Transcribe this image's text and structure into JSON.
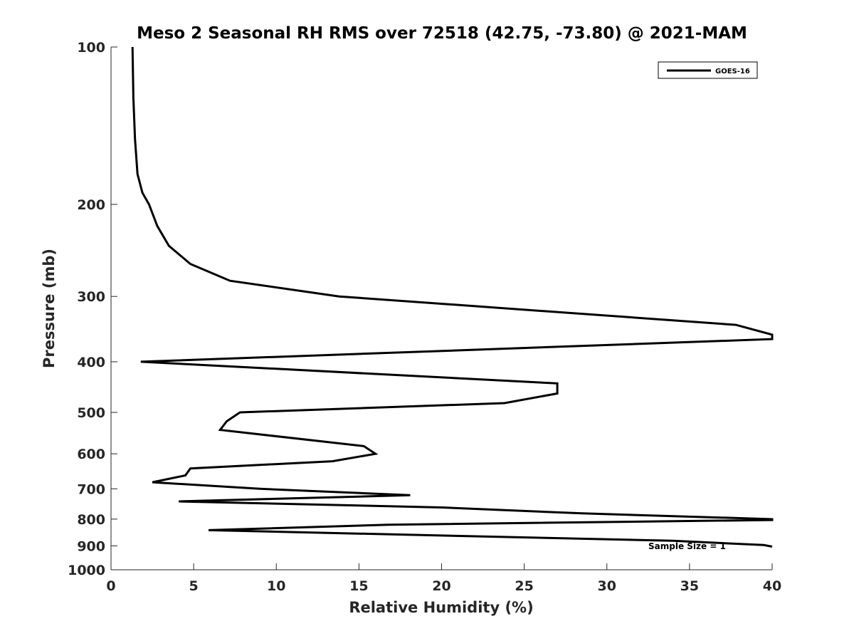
{
  "chart_data": {
    "type": "line",
    "title": "Meso 2 Seasonal RH RMS over 72518 (42.75, -73.80) @ 2021-MAM",
    "xlabel": "Relative Humidity (%)",
    "ylabel": "Pressure (mb)",
    "xlim": [
      0,
      40
    ],
    "ylim": [
      100,
      1000
    ],
    "yscale": "log",
    "y_reversed": true,
    "grid": false,
    "legend_position": "top-right",
    "xticks": [
      0,
      5,
      10,
      15,
      20,
      25,
      30,
      35,
      40
    ],
    "yticks": [
      100,
      200,
      300,
      400,
      500,
      600,
      700,
      800,
      900,
      1000
    ],
    "annotation": "Sample Size = 1",
    "series": [
      {
        "name": "GOES-16",
        "color": "#000000",
        "points": [
          [
            1.3,
            100
          ],
          [
            1.35,
            125
          ],
          [
            1.45,
            150
          ],
          [
            1.6,
            175
          ],
          [
            1.9,
            190
          ],
          [
            2.3,
            200
          ],
          [
            2.8,
            220
          ],
          [
            3.5,
            240
          ],
          [
            4.8,
            260
          ],
          [
            7.2,
            280
          ],
          [
            13.8,
            300
          ],
          [
            37.8,
            340
          ],
          [
            40,
            355
          ],
          [
            40,
            362
          ],
          [
            1.8,
            400
          ],
          [
            27.0,
            440
          ],
          [
            27.0,
            460
          ],
          [
            23.8,
            480
          ],
          [
            7.8,
            500
          ],
          [
            7.0,
            520
          ],
          [
            6.6,
            540
          ],
          [
            15.3,
            580
          ],
          [
            16.0,
            600
          ],
          [
            13.4,
            620
          ],
          [
            4.8,
            640
          ],
          [
            4.5,
            660
          ],
          [
            2.5,
            680
          ],
          [
            9.0,
            700
          ],
          [
            18.1,
            720
          ],
          [
            4.1,
            740
          ],
          [
            20.0,
            760
          ],
          [
            28.5,
            780
          ],
          [
            40,
            800
          ],
          [
            40,
            803
          ],
          [
            16.8,
            820
          ],
          [
            5.9,
            840
          ],
          [
            34.0,
            880
          ],
          [
            39.5,
            897
          ],
          [
            40,
            903
          ]
        ]
      }
    ]
  }
}
